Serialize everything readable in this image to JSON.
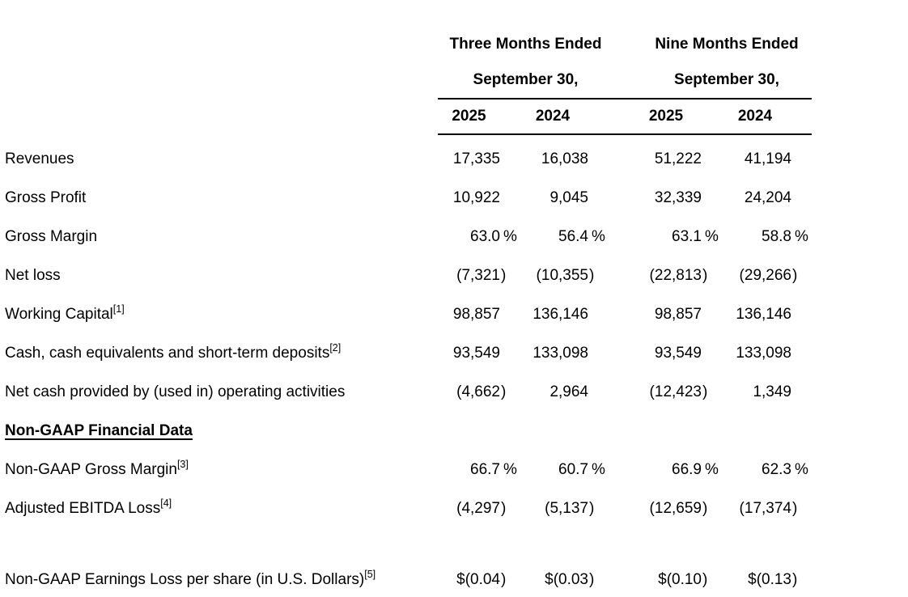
{
  "page": {
    "background": "#ffffff",
    "text_color": "#000000",
    "rule_color": "#000000"
  },
  "table": {
    "header": {
      "groups": [
        {
          "title_line1": "Three Months Ended",
          "title_line2": "September 30,",
          "years": [
            "2025",
            "2024"
          ]
        },
        {
          "title_line1": "Nine Months Ended",
          "title_line2": "September 30,",
          "years": [
            "2025",
            "2024"
          ]
        }
      ]
    },
    "rows": [
      {
        "label": "Revenues",
        "sup": "",
        "style": "normal",
        "values": [
          "17,335",
          "16,038",
          "51,222",
          "41,194"
        ]
      },
      {
        "label": "Gross Profit",
        "sup": "",
        "style": "normal",
        "values": [
          "10,922",
          "9,045",
          "32,339",
          "24,204"
        ]
      },
      {
        "label": "Gross Margin",
        "sup": "",
        "style": "normal",
        "values": [
          "63.0 %",
          "56.4 %",
          "63.1 %",
          "58.8 %"
        ]
      },
      {
        "label": "Net loss",
        "sup": "",
        "style": "normal",
        "values": [
          "(7,321)",
          "(10,355)",
          "(22,813)",
          "(29,266)"
        ]
      },
      {
        "label": "Working Capital",
        "sup": "[1]",
        "style": "normal",
        "values": [
          "98,857",
          "136,146",
          "98,857",
          "136,146"
        ]
      },
      {
        "label": "Cash, cash equivalents and short-term deposits",
        "sup": "[2]",
        "style": "normal",
        "values": [
          "93,549",
          "133,098",
          "93,549",
          "133,098"
        ]
      },
      {
        "label": "Net cash provided by (used in) operating activities",
        "sup": "",
        "style": "normal",
        "values": [
          "(4,662)",
          "2,964",
          "(12,423)",
          "1,349"
        ]
      },
      {
        "label": "Non-GAAP Financial Data",
        "sup": "",
        "style": "section-heading",
        "values": [
          "",
          "",
          "",
          ""
        ]
      },
      {
        "label": "Non-GAAP Gross Margin",
        "sup": "[3]",
        "style": "normal",
        "values": [
          "66.7 %",
          "60.7 %",
          "66.9 %",
          "62.3 %"
        ]
      },
      {
        "label": "Adjusted EBITDA Loss",
        "sup": "[4]",
        "style": "normal",
        "values": [
          "(4,297)",
          "(5,137)",
          "(12,659)",
          "(17,374)"
        ]
      },
      {
        "label": "",
        "sup": "",
        "style": "spacer",
        "values": [
          "",
          "",
          "",
          ""
        ]
      },
      {
        "label": "Non-GAAP Earnings Loss per share (in U.S. Dollars)",
        "sup": "[5]",
        "style": "normal",
        "values": [
          "$(0.04)",
          "$(0.03)",
          "$(0.10)",
          "$(0.13)"
        ]
      }
    ]
  }
}
